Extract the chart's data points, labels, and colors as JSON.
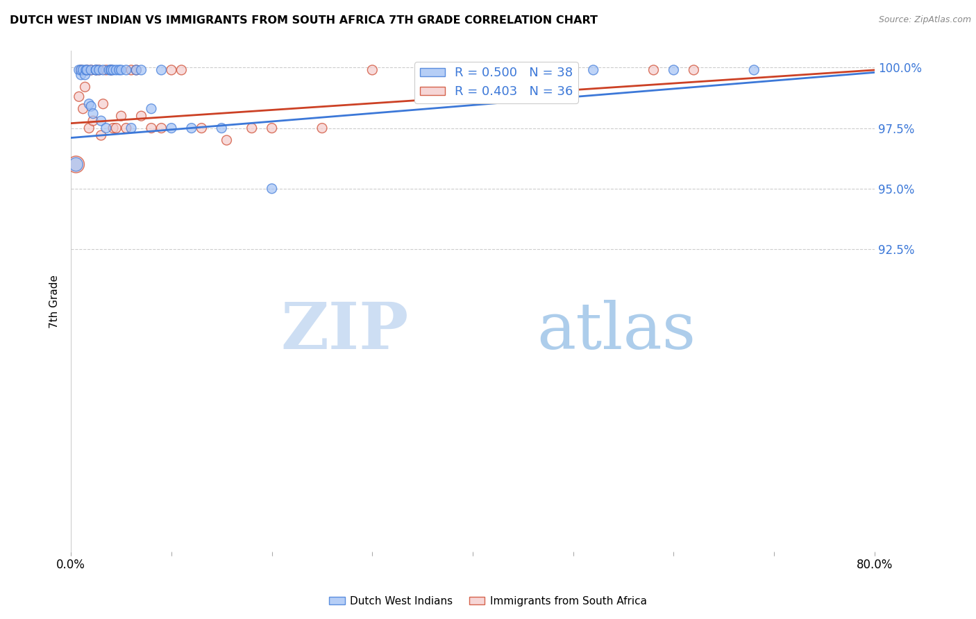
{
  "title": "DUTCH WEST INDIAN VS IMMIGRANTS FROM SOUTH AFRICA 7TH GRADE CORRELATION CHART",
  "source": "Source: ZipAtlas.com",
  "ylabel": "7th Grade",
  "ytick_labels": [
    "92.5%",
    "95.0%",
    "97.5%",
    "100.0%"
  ],
  "ytick_values": [
    0.925,
    0.95,
    0.975,
    1.0
  ],
  "xlim": [
    0.0,
    0.8
  ],
  "ylim": [
    0.8,
    1.007
  ],
  "blue_color": "#a4c2f4",
  "pink_color": "#f4cccc",
  "blue_line_color": "#3c78d8",
  "pink_line_color": "#cc4125",
  "legend_blue_R": "0.500",
  "legend_blue_N": "38",
  "legend_pink_R": "0.403",
  "legend_pink_N": "36",
  "legend_label_blue": "Dutch West Indians",
  "legend_label_pink": "Immigrants from South Africa",
  "watermark_zip": "ZIP",
  "watermark_atlas": "atlas",
  "blue_scatter_x": [
    0.005,
    0.008,
    0.01,
    0.01,
    0.012,
    0.014,
    0.015,
    0.016,
    0.018,
    0.02,
    0.02,
    0.022,
    0.025,
    0.025,
    0.028,
    0.03,
    0.032,
    0.035,
    0.038,
    0.04,
    0.04,
    0.042,
    0.045,
    0.048,
    0.05,
    0.055,
    0.06,
    0.065,
    0.07,
    0.08,
    0.09,
    0.1,
    0.12,
    0.15,
    0.2,
    0.52,
    0.6,
    0.68
  ],
  "blue_scatter_y": [
    0.96,
    0.999,
    0.997,
    0.999,
    0.999,
    0.997,
    0.999,
    0.999,
    0.985,
    0.999,
    0.984,
    0.981,
    0.999,
    0.999,
    0.999,
    0.978,
    0.999,
    0.975,
    0.999,
    0.999,
    0.999,
    0.999,
    0.999,
    0.999,
    0.999,
    0.999,
    0.975,
    0.999,
    0.999,
    0.983,
    0.999,
    0.975,
    0.975,
    0.975,
    0.95,
    0.999,
    0.999,
    0.999
  ],
  "blue_scatter_size": [
    200,
    100,
    100,
    100,
    100,
    100,
    100,
    100,
    100,
    100,
    100,
    100,
    100,
    100,
    100,
    100,
    100,
    100,
    100,
    100,
    100,
    100,
    100,
    100,
    100,
    100,
    100,
    100,
    100,
    100,
    100,
    100,
    100,
    100,
    100,
    100,
    100,
    100
  ],
  "pink_scatter_x": [
    0.005,
    0.008,
    0.01,
    0.012,
    0.014,
    0.016,
    0.018,
    0.02,
    0.022,
    0.025,
    0.028,
    0.03,
    0.032,
    0.035,
    0.04,
    0.042,
    0.045,
    0.05,
    0.055,
    0.06,
    0.065,
    0.07,
    0.08,
    0.09,
    0.1,
    0.11,
    0.13,
    0.155,
    0.18,
    0.2,
    0.25,
    0.3,
    0.42,
    0.5,
    0.58,
    0.62
  ],
  "pink_scatter_y": [
    0.96,
    0.988,
    0.999,
    0.983,
    0.992,
    0.999,
    0.975,
    0.999,
    0.978,
    0.999,
    0.999,
    0.972,
    0.985,
    0.999,
    0.999,
    0.975,
    0.975,
    0.98,
    0.975,
    0.999,
    0.999,
    0.98,
    0.975,
    0.975,
    0.999,
    0.999,
    0.975,
    0.97,
    0.975,
    0.975,
    0.975,
    0.999,
    0.999,
    0.999,
    0.999,
    0.999
  ],
  "pink_scatter_size": [
    300,
    100,
    100,
    100,
    100,
    100,
    100,
    100,
    100,
    100,
    100,
    100,
    100,
    100,
    100,
    100,
    100,
    100,
    100,
    100,
    100,
    100,
    100,
    100,
    100,
    100,
    100,
    100,
    100,
    100,
    100,
    100,
    100,
    100,
    100,
    100
  ],
  "blue_line_x0": 0.0,
  "blue_line_y0": 0.971,
  "blue_line_x1": 0.8,
  "blue_line_y1": 0.998,
  "pink_line_x0": 0.0,
  "pink_line_y0": 0.977,
  "pink_line_x1": 0.8,
  "pink_line_y1": 0.999
}
